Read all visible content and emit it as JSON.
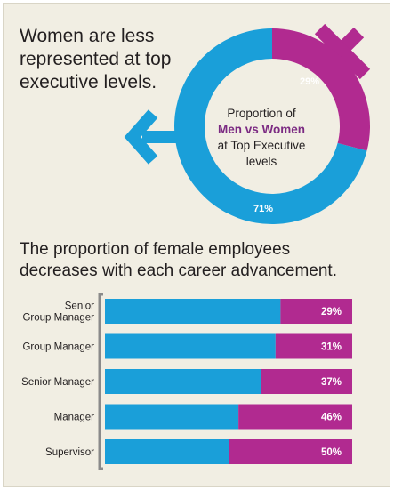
{
  "headline": {
    "lines": [
      "Women are less",
      "represented at top",
      "executive levels."
    ]
  },
  "donut": {
    "center_lines": [
      "Proportion of",
      "Men vs Women",
      "at Top Executive",
      "levels"
    ],
    "women_percent": 29,
    "men_percent": 71,
    "women_label": "29%",
    "men_label": "71%"
  },
  "subhead": {
    "lines": [
      "The proportion of female employees",
      "decreases with each career advancement."
    ]
  },
  "colors": {
    "men": "#1a9fd9",
    "women": "#b12a90",
    "background": "#f1eee3",
    "text": "#231f20",
    "emphasis": "#7b2a82",
    "bracket": "#8a8a8a"
  },
  "chart_data": [
    {
      "type": "pie",
      "subtype": "donut",
      "values": [
        29,
        71
      ],
      "labels": [
        "29%",
        "71%"
      ],
      "center_text": "Proportion of Men vs Women at Top Executive levels"
    },
    {
      "type": "bar",
      "orientation": "horizontal",
      "stacked": true,
      "normalized": true,
      "categories": [
        "Senior Group Manager",
        "Group Manager",
        "Senior Manager",
        "Manager",
        "Supervisor"
      ],
      "category_lines": [
        [
          "Senior",
          "Group Manager"
        ],
        [
          "Group Manager"
        ],
        [
          "Senior Manager"
        ],
        [
          "Manager"
        ],
        [
          "Supervisor"
        ]
      ],
      "series": [
        {
          "values": [
            71,
            69,
            63,
            54,
            50
          ],
          "color": "#1a9fd9"
        },
        {
          "values": [
            29,
            31,
            37,
            46,
            50
          ],
          "color": "#b12a90",
          "labels": [
            "29%",
            "31%",
            "37%",
            "46%",
            "50%"
          ]
        }
      ],
      "xlim": [
        0,
        100
      ]
    }
  ]
}
